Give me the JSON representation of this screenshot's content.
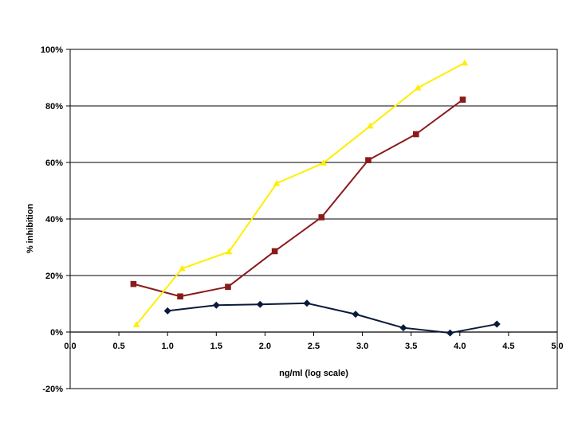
{
  "chart_data": {
    "type": "line",
    "title": "",
    "xlabel": "ng/ml (log scale)",
    "ylabel": "% inhibition",
    "xlim": [
      0,
      5
    ],
    "ylim": [
      -20,
      100
    ],
    "x_ticks": [
      "0.0",
      "0.5",
      "1.0",
      "1.5",
      "2.0",
      "2.5",
      "3.0",
      "3.5",
      "4.0",
      "4.5",
      "5.0"
    ],
    "y_ticks": [
      "-20%",
      "0%",
      "20%",
      "40%",
      "60%",
      "80%",
      "100%"
    ],
    "grid": "horizontal",
    "legend": "none",
    "series": [
      {
        "color": "#0a1a3a",
        "marker": "diamond",
        "x": [
          1.0,
          1.5,
          1.95,
          2.43,
          2.93,
          3.42,
          3.9,
          4.38
        ],
        "y": [
          7.5,
          9.5,
          9.8,
          10.2,
          6.3,
          1.5,
          -0.3,
          2.8
        ]
      },
      {
        "color": "#8b1a1a",
        "marker": "square",
        "x": [
          0.65,
          1.13,
          1.62,
          2.1,
          2.58,
          3.06,
          3.55,
          4.03
        ],
        "y": [
          17.0,
          12.6,
          16.0,
          28.6,
          40.6,
          60.8,
          70.0,
          82.2
        ]
      },
      {
        "color": "#ffee00",
        "marker": "triangle",
        "x": [
          0.68,
          1.15,
          1.63,
          2.12,
          2.6,
          3.08,
          3.57,
          4.05
        ],
        "y": [
          2.6,
          22.5,
          28.4,
          52.6,
          59.8,
          72.9,
          86.4,
          95.2
        ]
      }
    ]
  }
}
